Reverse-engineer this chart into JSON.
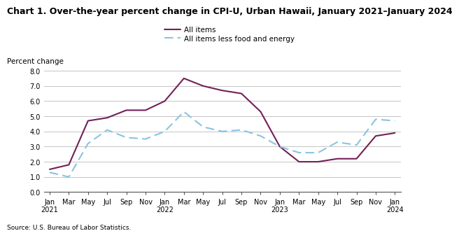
{
  "title": "Chart 1. Over-the-year percent change in CPI-U, Urban Hawaii, January 2021–January 2024",
  "ylabel": "Percent change",
  "source": "Source: U.S. Bureau of Labor Statistics.",
  "ylim": [
    0.0,
    8.0
  ],
  "yticks": [
    0.0,
    1.0,
    2.0,
    3.0,
    4.0,
    5.0,
    6.0,
    7.0,
    8.0
  ],
  "xtick_labels": [
    "Jan\n2021",
    "Mar",
    "May",
    "Jul",
    "Sep",
    "Nov",
    "Jan\n2022",
    "Mar",
    "May",
    "Jul",
    "Sep",
    "Nov",
    "Jan\n2023",
    "Mar",
    "May",
    "Jul",
    "Sep",
    "Nov",
    "Jan\n2024"
  ],
  "all_items": [
    1.5,
    1.8,
    4.7,
    4.9,
    5.4,
    5.4,
    6.0,
    7.5,
    7.0,
    6.7,
    6.5,
    5.3,
    3.0,
    2.0,
    2.0,
    2.2,
    2.2,
    3.7,
    3.9
  ],
  "all_items_less": [
    1.3,
    1.0,
    3.2,
    4.1,
    3.6,
    3.5,
    4.0,
    5.3,
    4.3,
    4.0,
    4.1,
    3.7,
    3.0,
    2.6,
    2.6,
    3.3,
    3.1,
    4.8,
    4.7
  ],
  "all_items_color": "#722057",
  "all_items_less_color": "#89C4E1",
  "background_color": "#ffffff",
  "grid_color": "#bbbbbb",
  "legend_all_items": "All items",
  "legend_all_items_less": "All items less food and energy",
  "title_fontsize": 9.0,
  "tick_fontsize": 7.0,
  "ylabel_fontsize": 7.5,
  "source_fontsize": 6.5,
  "legend_fontsize": 7.5
}
